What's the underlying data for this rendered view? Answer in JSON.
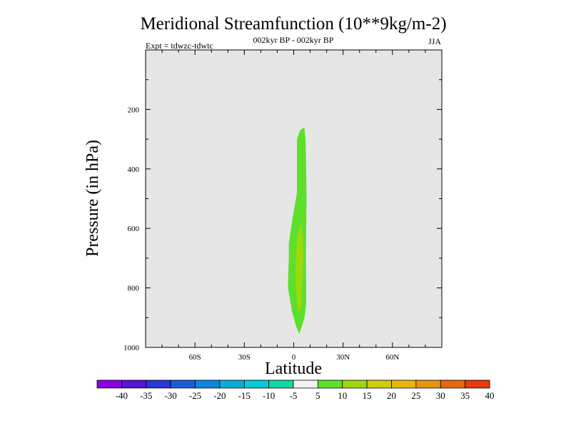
{
  "chart_data": {
    "type": "contour",
    "title": "Meridional Streamfunction (10**9kg/m-2)",
    "subtitle_center": "002kyr BP - 002kyr BP",
    "subtitle_left": "Expt = tdwzc-tdwtc",
    "subtitle_right": "JJA",
    "xlabel": "Latitude",
    "ylabel": "Pressure (in hPa)",
    "xlim": [
      -90,
      90
    ],
    "ylim": [
      1000,
      0
    ],
    "x_ticks": [
      {
        "value": -60,
        "label": "60S"
      },
      {
        "value": -30,
        "label": "30S"
      },
      {
        "value": 0,
        "label": "0"
      },
      {
        "value": 30,
        "label": "30N"
      },
      {
        "value": 60,
        "label": "60N"
      }
    ],
    "y_ticks": [
      {
        "value": 200,
        "label": "200"
      },
      {
        "value": 400,
        "label": "400"
      },
      {
        "value": 600,
        "label": "600"
      },
      {
        "value": 800,
        "label": "800"
      },
      {
        "value": 1000,
        "label": "1000"
      }
    ],
    "background_color": "#e6e6e6",
    "contour_regions": [
      {
        "level_range": "5 to 10",
        "color": "#5de02a",
        "polygon": [
          [
            6.4,
            260
          ],
          [
            7.2,
            300
          ],
          [
            7.6,
            400
          ],
          [
            7.8,
            500
          ],
          [
            7.6,
            600
          ],
          [
            7.4,
            700
          ],
          [
            7.6,
            800
          ],
          [
            7.6,
            850
          ],
          [
            6.6,
            900
          ],
          [
            3.4,
            955
          ],
          [
            1.5,
            930
          ],
          [
            -1.0,
            880
          ],
          [
            -3.5,
            800
          ],
          [
            -3.0,
            700
          ],
          [
            -3.0,
            650
          ],
          [
            -0.5,
            560
          ],
          [
            2.0,
            480
          ],
          [
            2.0,
            400
          ],
          [
            2.0,
            300
          ],
          [
            3.8,
            270
          ]
        ]
      },
      {
        "level_range": "10 to 15",
        "color": "#9ed80e",
        "polygon": [
          [
            4.6,
            580
          ],
          [
            5.4,
            630
          ],
          [
            5.8,
            700
          ],
          [
            5.0,
            800
          ],
          [
            4.6,
            870
          ],
          [
            2.8,
            880
          ],
          [
            1.4,
            800
          ],
          [
            1.2,
            700
          ],
          [
            2.2,
            630
          ]
        ]
      }
    ],
    "colorbar": {
      "tick_labels": [
        "-40",
        "-35",
        "-30",
        "-25",
        "-20",
        "-15",
        "-10",
        "-5",
        "5",
        "10",
        "15",
        "20",
        "25",
        "30",
        "35",
        "40"
      ],
      "colors": [
        "#8a00e6",
        "#5714d2",
        "#2738d6",
        "#1a5ddc",
        "#0f85de",
        "#0aaed9",
        "#06cbd1",
        "#12d6a4",
        "#f2f2f2",
        "#5de02a",
        "#9ed80e",
        "#cfcc0c",
        "#e6b70d",
        "#e8930e",
        "#e6680c",
        "#e63a08"
      ]
    }
  }
}
